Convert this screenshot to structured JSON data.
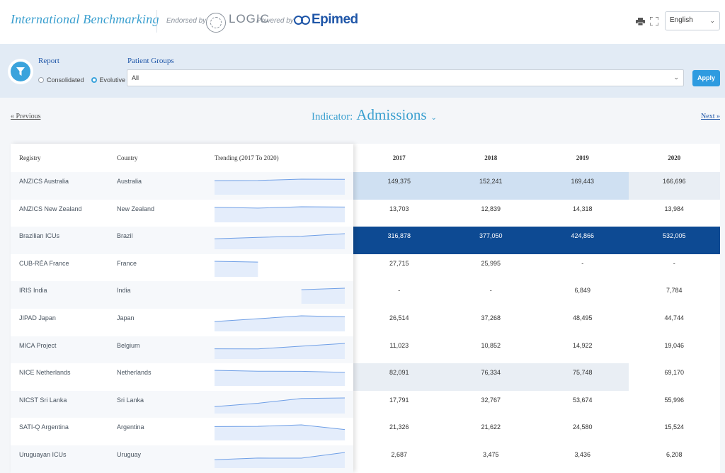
{
  "header": {
    "brand": "International Benchmarking",
    "endorsed_by": "Endorsed by",
    "logic": "LOGIC",
    "powered_by": "Powered by",
    "epimed": "Epimed",
    "language": "English"
  },
  "filters": {
    "report_label": "Report",
    "consolidated": "Consolidated",
    "evolutive": "Evolutive",
    "patient_groups_label": "Patient Groups",
    "patient_groups_value": "All",
    "apply": "Apply"
  },
  "nav": {
    "previous": "« Previous",
    "next": "Next »",
    "indicator_label": "Indicator:",
    "indicator_value": "Admissions"
  },
  "table": {
    "col_registry": "Registry",
    "col_country": "Country",
    "col_trending": "Trending (2017 To 2020)",
    "years": [
      "2017",
      "2018",
      "2019",
      "2020"
    ],
    "rows": [
      {
        "registry": "ANZICS Australia",
        "country": "Australia",
        "values": [
          "149,375",
          "152,241",
          "169,443",
          "166,696"
        ],
        "trend": [
          149375,
          152241,
          169443,
          166696
        ],
        "heat": [
          "#cfe0f2",
          "#cfe0f2",
          "#cfe0f2",
          "#e9eef4"
        ]
      },
      {
        "registry": "ANZICS New Zealand",
        "country": "New Zealand",
        "values": [
          "13,703",
          "12,839",
          "14,318",
          "13,984"
        ],
        "trend": [
          13703,
          12839,
          14318,
          13984
        ],
        "heat": [
          "#ffffff",
          "#ffffff",
          "#ffffff",
          "#ffffff"
        ]
      },
      {
        "registry": "Brazilian ICUs",
        "country": "Brazil",
        "values": [
          "316,878",
          "377,050",
          "424,866",
          "532,005"
        ],
        "trend": [
          316878,
          377050,
          424866,
          532005
        ],
        "heat": [
          "#0d4a93",
          "#0d4a93",
          "#0d4a93",
          "#0d4a93"
        ]
      },
      {
        "registry": "CUB-RÉA France",
        "country": "France",
        "values": [
          "27,715",
          "25,995",
          "-",
          "-"
        ],
        "trend": [
          27715,
          25995,
          null,
          null
        ],
        "heat": [
          "#ffffff",
          "#ffffff",
          "#ffffff",
          "#ffffff"
        ]
      },
      {
        "registry": "IRIS India",
        "country": "India",
        "values": [
          "-",
          "-",
          "6,849",
          "7,784"
        ],
        "trend": [
          null,
          null,
          6849,
          7784
        ],
        "heat": [
          "#ffffff",
          "#ffffff",
          "#ffffff",
          "#ffffff"
        ]
      },
      {
        "registry": "JIPAD Japan",
        "country": "Japan",
        "values": [
          "26,514",
          "37,268",
          "48,495",
          "44,744"
        ],
        "trend": [
          26514,
          37268,
          48495,
          44744
        ],
        "heat": [
          "#ffffff",
          "#ffffff",
          "#ffffff",
          "#ffffff"
        ]
      },
      {
        "registry": "MICA Project",
        "country": "Belgium",
        "values": [
          "11,023",
          "10,852",
          "14,922",
          "19,046"
        ],
        "trend": [
          11023,
          10852,
          14922,
          19046
        ],
        "heat": [
          "#ffffff",
          "#ffffff",
          "#ffffff",
          "#ffffff"
        ]
      },
      {
        "registry": "NICE Netherlands",
        "country": "Netherlands",
        "values": [
          "82,091",
          "76,334",
          "75,748",
          "69,170"
        ],
        "trend": [
          82091,
          76334,
          75748,
          69170
        ],
        "heat": [
          "#e9eef4",
          "#e9eef4",
          "#e9eef4",
          "#ffffff"
        ]
      },
      {
        "registry": "NICST Sri Lanka",
        "country": "Sri Lanka",
        "values": [
          "17,791",
          "32,767",
          "53,674",
          "55,996"
        ],
        "trend": [
          17791,
          32767,
          53674,
          55996
        ],
        "heat": [
          "#ffffff",
          "#ffffff",
          "#ffffff",
          "#ffffff"
        ]
      },
      {
        "registry": "SATI-Q Argentina",
        "country": "Argentina",
        "values": [
          "21,326",
          "21,622",
          "24,580",
          "15,524"
        ],
        "trend": [
          21326,
          21622,
          24580,
          15524
        ],
        "heat": [
          "#ffffff",
          "#ffffff",
          "#ffffff",
          "#ffffff"
        ]
      },
      {
        "registry": "Uruguayan ICUs",
        "country": "Uruguay",
        "values": [
          "2,687",
          "3,475",
          "3,436",
          "6,208"
        ],
        "trend": [
          2687,
          3475,
          3436,
          6208
        ],
        "heat": [
          "#ffffff",
          "#ffffff",
          "#ffffff",
          "#ffffff"
        ]
      }
    ]
  },
  "colors": {
    "accent": "#3a9fcf",
    "brand_dark": "#1f56a8",
    "spark_line": "#6f9fe6",
    "spark_fill": "#e4edfb"
  }
}
